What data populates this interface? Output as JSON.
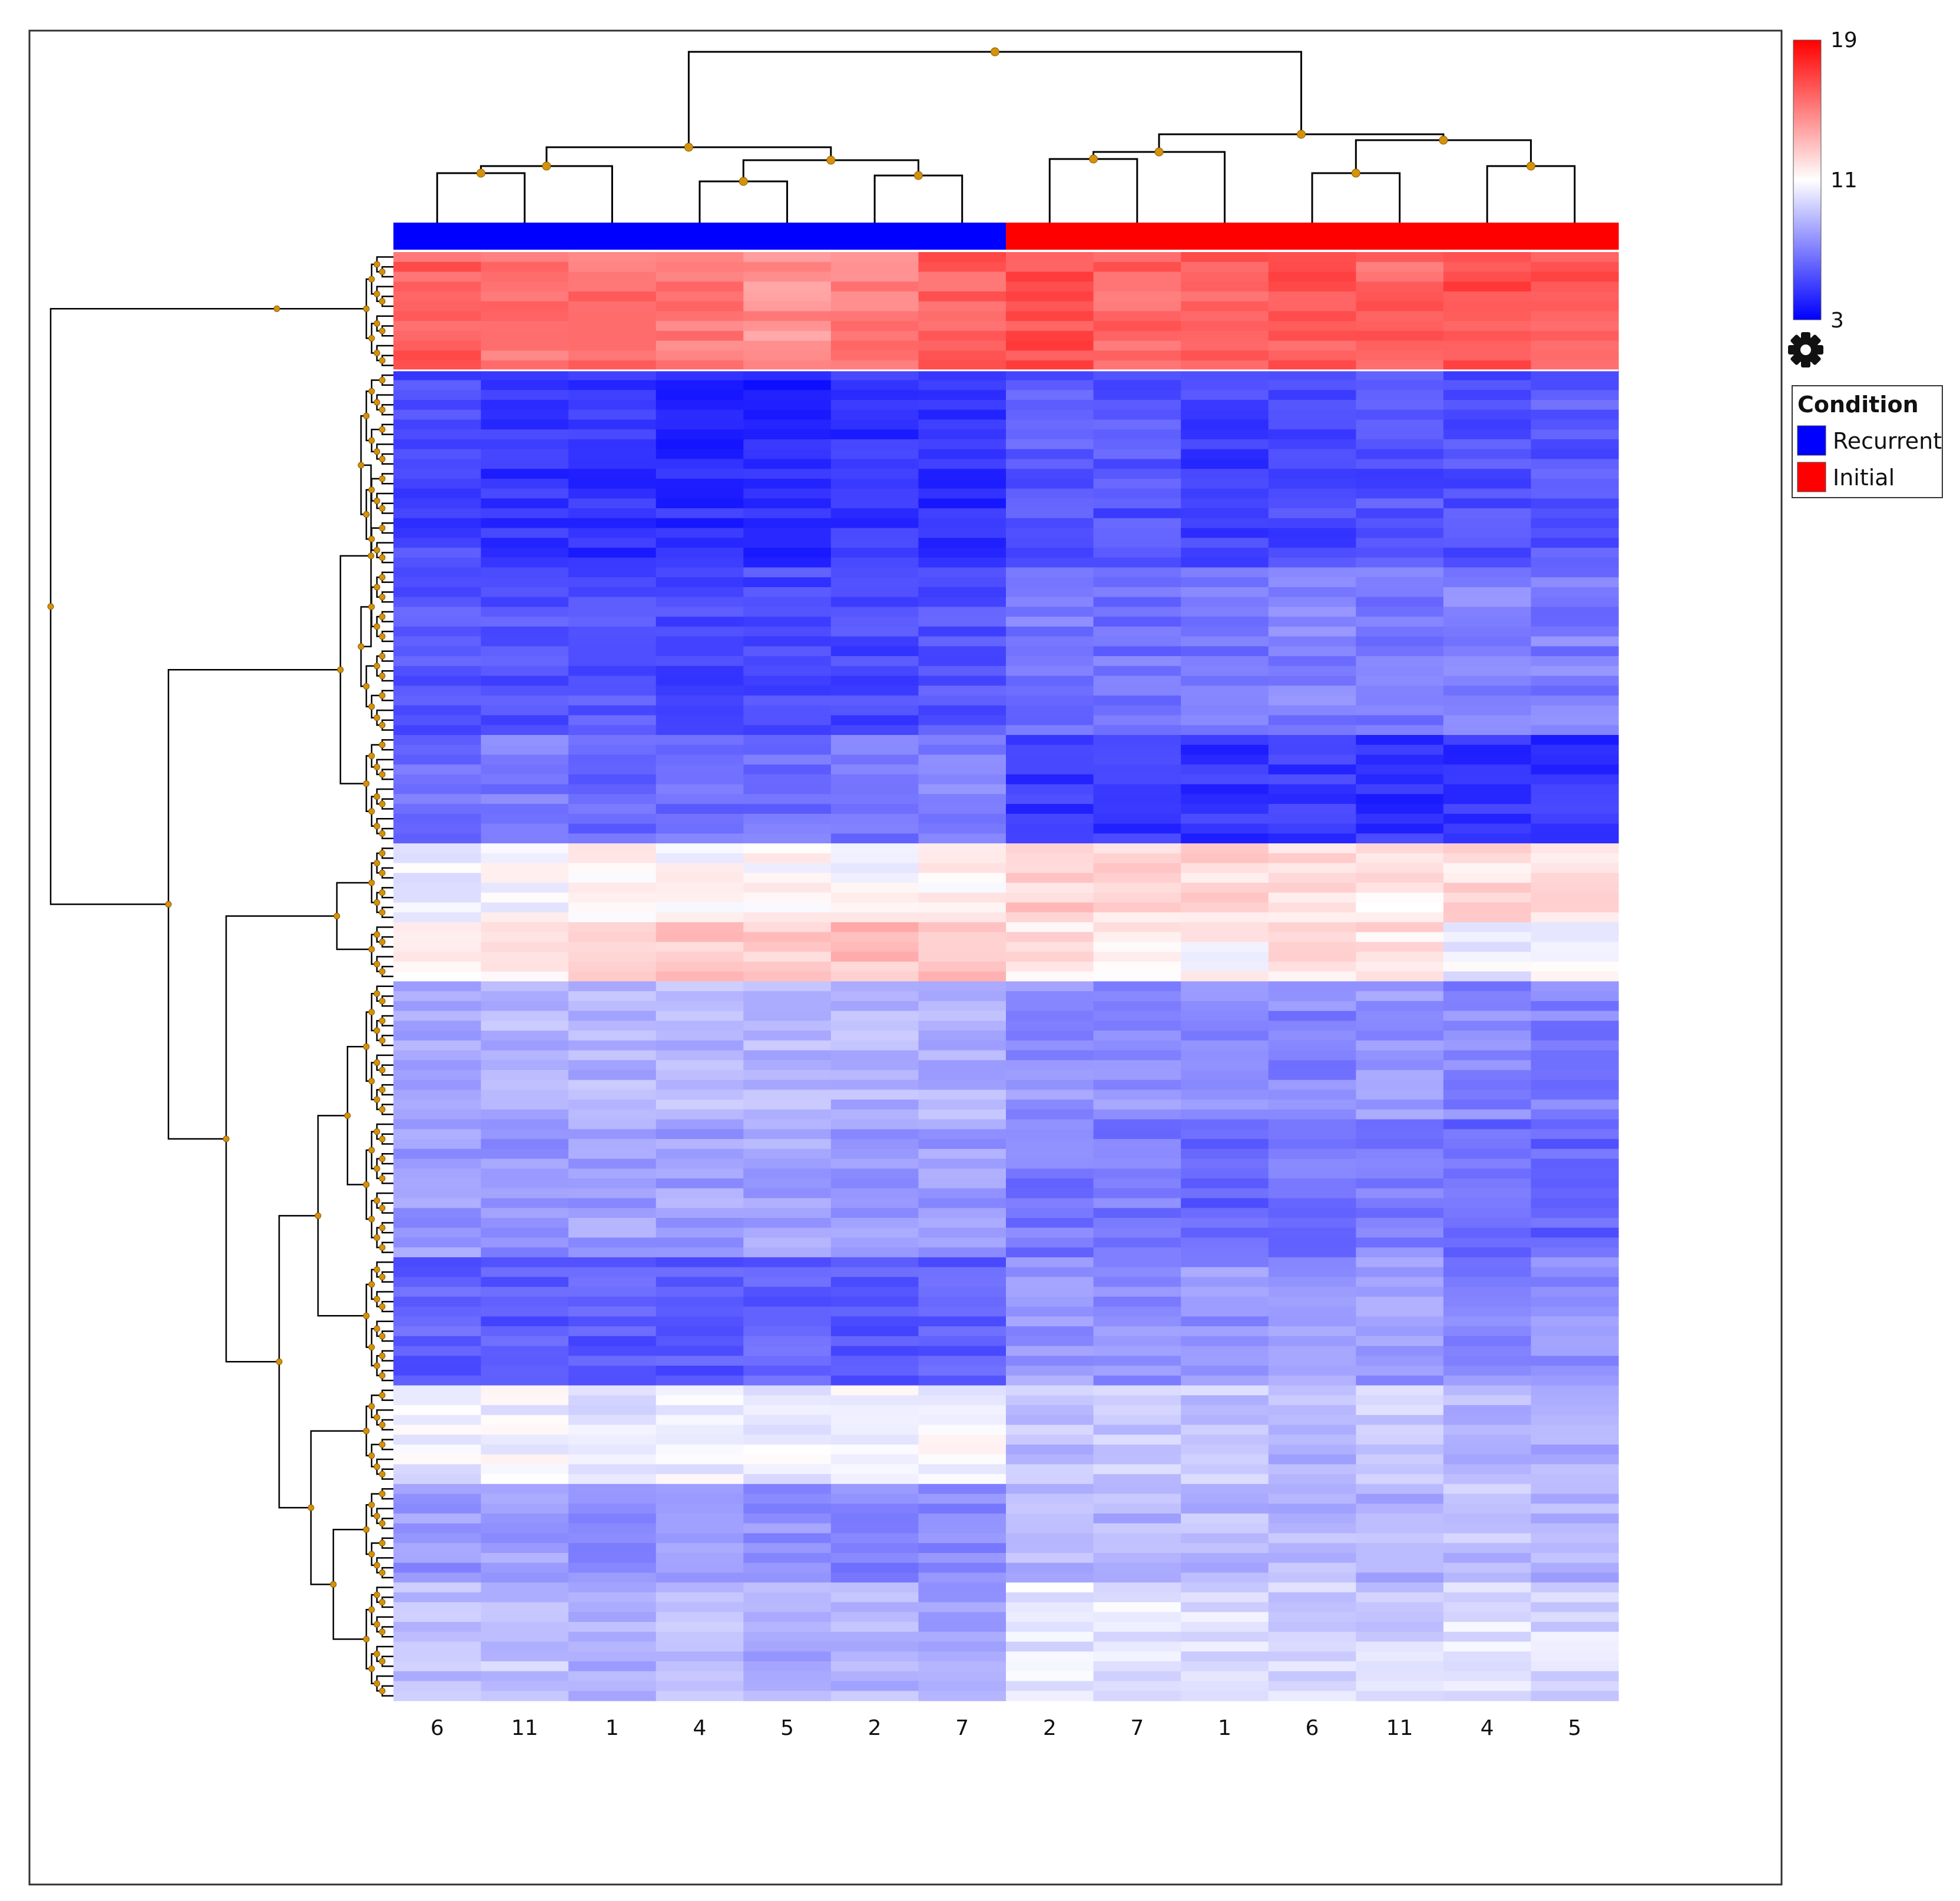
{
  "chart_data": {
    "type": "heatmap",
    "title": "",
    "columns": [
      {
        "label": "6",
        "condition": "Recurrent"
      },
      {
        "label": "11",
        "condition": "Recurrent"
      },
      {
        "label": "1",
        "condition": "Recurrent"
      },
      {
        "label": "4",
        "condition": "Recurrent"
      },
      {
        "label": "5",
        "condition": "Recurrent"
      },
      {
        "label": "2",
        "condition": "Recurrent"
      },
      {
        "label": "7",
        "condition": "Recurrent"
      },
      {
        "label": "2",
        "condition": "Initial"
      },
      {
        "label": "7",
        "condition": "Initial"
      },
      {
        "label": "1",
        "condition": "Initial"
      },
      {
        "label": "6",
        "condition": "Initial"
      },
      {
        "label": "11",
        "condition": "Initial"
      },
      {
        "label": "4",
        "condition": "Initial"
      },
      {
        "label": "5",
        "condition": "Initial"
      }
    ],
    "row_blocks": [
      {
        "rows": 12,
        "recurrent": [
          16.0,
          15.5,
          15.5,
          15.2,
          14.5,
          15.0,
          16.0
        ],
        "initial": [
          16.5,
          15.8,
          16.0,
          16.2,
          15.8,
          16.5,
          16.2
        ]
      },
      {
        "rows": 20,
        "recurrent": [
          5.2,
          4.6,
          4.6,
          4.4,
          4.2,
          4.6,
          4.4
        ],
        "initial": [
          5.8,
          5.6,
          5.0,
          5.2,
          5.6,
          5.6,
          5.8
        ]
      },
      {
        "rows": 17,
        "recurrent": [
          5.6,
          5.6,
          5.6,
          5.3,
          5.3,
          5.3,
          5.5
        ],
        "initial": [
          6.8,
          6.6,
          6.6,
          7.0,
          6.6,
          7.0,
          7.0
        ]
      },
      {
        "rows": 11,
        "recurrent": [
          6.5,
          6.8,
          6.2,
          6.4,
          6.6,
          6.8,
          7.0
        ],
        "initial": [
          4.8,
          4.8,
          4.6,
          4.8,
          4.6,
          4.5,
          4.6
        ]
      },
      {
        "rows": 8,
        "recurrent": [
          10.6,
          10.8,
          11.2,
          11.0,
          11.2,
          11.0,
          11.4
        ],
        "initial": [
          12.5,
          12.2,
          12.3,
          12.0,
          11.6,
          12.0,
          12.0
        ]
      },
      {
        "rows": 6,
        "recurrent": [
          11.8,
          12.0,
          12.0,
          12.8,
          12.6,
          13.0,
          12.8
        ],
        "initial": [
          11.8,
          11.4,
          11.2,
          11.8,
          12.0,
          10.4,
          10.6
        ]
      },
      {
        "rows": 14,
        "recurrent": [
          8.4,
          8.6,
          8.6,
          8.8,
          8.8,
          8.6,
          8.6
        ],
        "initial": [
          7.6,
          7.6,
          7.4,
          7.2,
          7.6,
          7.2,
          7.0
        ]
      },
      {
        "rows": 14,
        "recurrent": [
          7.8,
          7.6,
          8.0,
          8.0,
          8.2,
          7.8,
          7.8
        ],
        "initial": [
          6.8,
          6.8,
          6.2,
          6.8,
          7.0,
          6.4,
          6.2
        ]
      },
      {
        "rows": 13,
        "recurrent": [
          6.0,
          5.8,
          5.8,
          5.8,
          6.0,
          5.8,
          6.0
        ],
        "initial": [
          7.8,
          7.4,
          7.6,
          7.8,
          7.8,
          7.2,
          7.4
        ]
      },
      {
        "rows": 10,
        "recurrent": [
          10.4,
          10.6,
          10.2,
          10.6,
          10.4,
          10.8,
          10.8
        ],
        "initial": [
          9.0,
          9.4,
          9.2,
          8.8,
          9.4,
          8.6,
          8.6
        ]
      },
      {
        "rows": 10,
        "recurrent": [
          7.8,
          8.0,
          7.6,
          7.6,
          7.6,
          7.2,
          7.4
        ],
        "initial": [
          8.8,
          8.6,
          8.8,
          8.6,
          8.6,
          9.0,
          8.4
        ]
      },
      {
        "rows": 12,
        "recurrent": [
          9.0,
          9.2,
          8.6,
          8.8,
          8.4,
          8.8,
          8.2
        ],
        "initial": [
          10.2,
          10.2,
          10.0,
          9.6,
          9.6,
          10.0,
          9.8
        ]
      }
    ],
    "color_scale": {
      "min": 3,
      "mid": 11,
      "max": 19,
      "low_color": "#0000ff",
      "mid_color": "#ffffff",
      "high_color": "#ff0000"
    },
    "colorbar_ticks": [
      "19",
      "11",
      "3"
    ],
    "legend": {
      "title": "Condition",
      "items": [
        {
          "label": "Recurrent",
          "color": "#0000ff"
        },
        {
          "label": "Initial",
          "color": "#ff0000"
        }
      ],
      "position": "right"
    },
    "settings_icon": "gear-icon",
    "frame_color": "#333333",
    "dendrogram_color": "#000000",
    "node_color": "#d4920a"
  }
}
